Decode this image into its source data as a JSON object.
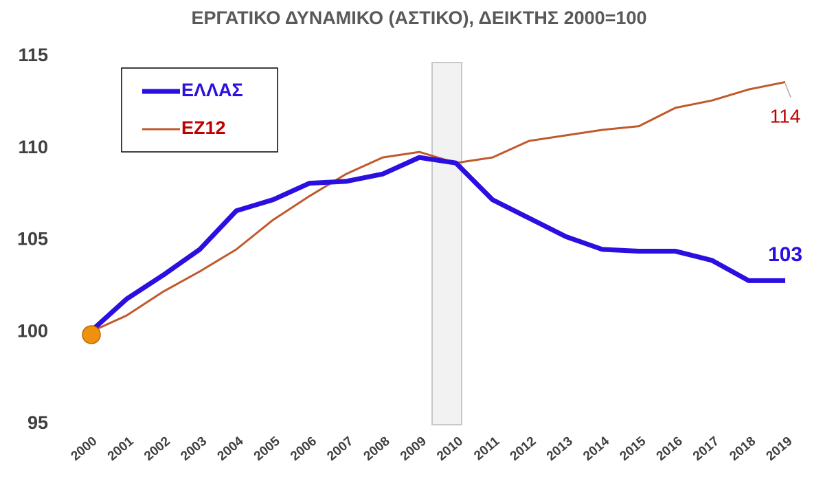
{
  "chart_data": {
    "type": "line",
    "title": "ΕΡΓΑΤΙΚΟ ΔΥΝΑΜΙΚΟ (ΑΣΤΙΚΟ), ΔΕΙΚΤΗΣ 2000=100",
    "categories": [
      "2000",
      "2001",
      "2002",
      "2003",
      "2004",
      "2005",
      "2006",
      "2007",
      "2008",
      "2009",
      "2010",
      "2011",
      "2012",
      "2013",
      "2014",
      "2015",
      "2016",
      "2017",
      "2018",
      "2019"
    ],
    "series": [
      {
        "name": "ΕΛΛΑΣ",
        "color": "#2a0fe0",
        "values": [
          100,
          101.8,
          103.1,
          104.5,
          106.6,
          107.2,
          108.1,
          108.2,
          108.6,
          109.5,
          109.2,
          107.2,
          106.2,
          105.2,
          104.5,
          104.4,
          104.4,
          103.9,
          102.8,
          102.8
        ],
        "value_labels": [
          null,
          null,
          null,
          null,
          null,
          null,
          null,
          null,
          null,
          null,
          null,
          null,
          null,
          null,
          null,
          null,
          null,
          null,
          null,
          "103"
        ]
      },
      {
        "name": "ΕΖ12",
        "color": "#c0592b",
        "values": [
          100,
          100.9,
          102.2,
          103.3,
          104.5,
          106.1,
          107.4,
          108.6,
          109.5,
          109.8,
          109.2,
          109.5,
          110.4,
          110.7,
          111.0,
          111.2,
          112.2,
          112.6,
          113.2,
          113.6
        ],
        "value_labels": [
          null,
          null,
          null,
          null,
          null,
          null,
          null,
          null,
          null,
          null,
          null,
          null,
          null,
          null,
          null,
          null,
          null,
          null,
          null,
          "114"
        ]
      }
    ],
    "ylim": [
      95,
      115
    ],
    "yticks": [
      95,
      100,
      105,
      110,
      115
    ],
    "grid": false
  }
}
